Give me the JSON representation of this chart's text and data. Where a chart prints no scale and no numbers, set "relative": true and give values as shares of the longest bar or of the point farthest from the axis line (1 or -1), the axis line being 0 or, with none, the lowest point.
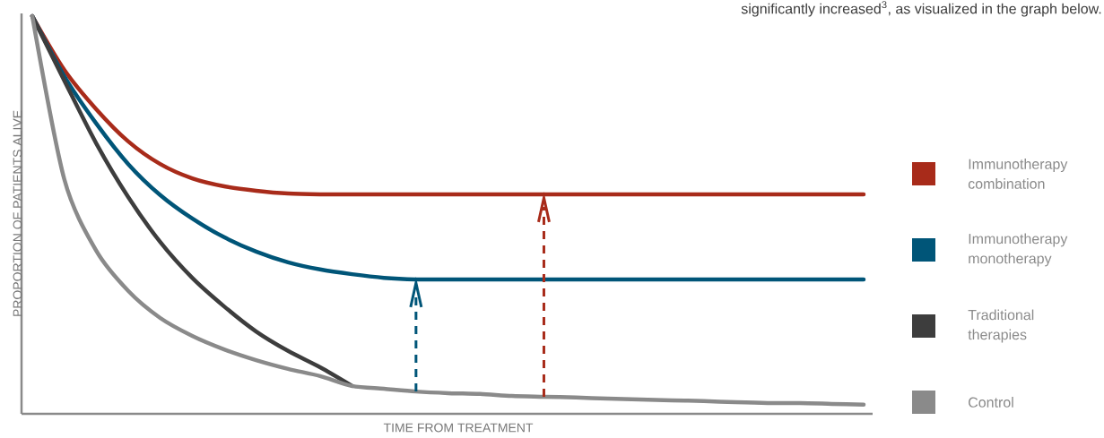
{
  "chart_data": {
    "type": "line",
    "relative": true,
    "legend": "right",
    "xlabel": "TIME FROM TREATMENT",
    "ylabel": "PROPORTION OF PATIENTS ALIVE",
    "annotations": [
      "significantly increased$^{3}$, as visualized in the graph below."
    ],
    "categories": [
      null,
      null,
      null,
      null,
      null,
      null,
      null,
      null,
      null,
      null,
      null,
      null,
      null,
      null,
      null,
      null,
      null,
      null,
      null,
      null,
      null,
      null,
      null,
      null,
      null,
      null,
      null
    ],
    "series": [
      {
        "name": "Immunotherapy combination",
        "color": "#a82b1a",
        "values": [
          1.0,
          0.865,
          0.766,
          0.685,
          0.628,
          0.592,
          0.572,
          0.561,
          0.554,
          0.552,
          0.552,
          0.552,
          0.552,
          0.552,
          0.552,
          0.552,
          0.552,
          0.552,
          0.552,
          0.552,
          0.552,
          0.552,
          0.552,
          0.552,
          0.552,
          0.552,
          0.552
        ]
      },
      {
        "name": "Immunotherapy monotherapy",
        "color": "#005578",
        "values": [
          1.0,
          0.849,
          0.73,
          0.628,
          0.55,
          0.491,
          0.444,
          0.408,
          0.381,
          0.363,
          0.351,
          0.342,
          0.338,
          0.338,
          0.338,
          0.338,
          0.338,
          0.338,
          0.338,
          0.338,
          0.338,
          0.338,
          0.338,
          0.338,
          0.338,
          0.338,
          0.338
        ]
      },
      {
        "name": "Traditional therapies",
        "color": "#3d3d3d",
        "values": [
          1.0,
          0.838,
          0.68,
          0.545,
          0.432,
          0.342,
          0.27,
          0.207,
          0.158,
          0.117,
          0.07,
          null,
          null,
          null,
          null,
          null,
          null,
          null,
          null,
          null,
          null,
          null,
          null,
          null,
          null,
          null,
          null
        ]
      },
      {
        "name": "Control",
        "color": "#8a8a8a",
        "values": [
          1.0,
          0.59,
          0.41,
          0.309,
          0.241,
          0.196,
          0.162,
          0.135,
          0.113,
          0.095,
          0.07,
          0.063,
          0.056,
          0.052,
          0.05,
          0.045,
          0.043,
          0.041,
          0.038,
          0.036,
          0.034,
          0.032,
          0.029,
          0.027,
          0.027,
          0.025,
          0.023
        ]
      }
    ]
  }
}
